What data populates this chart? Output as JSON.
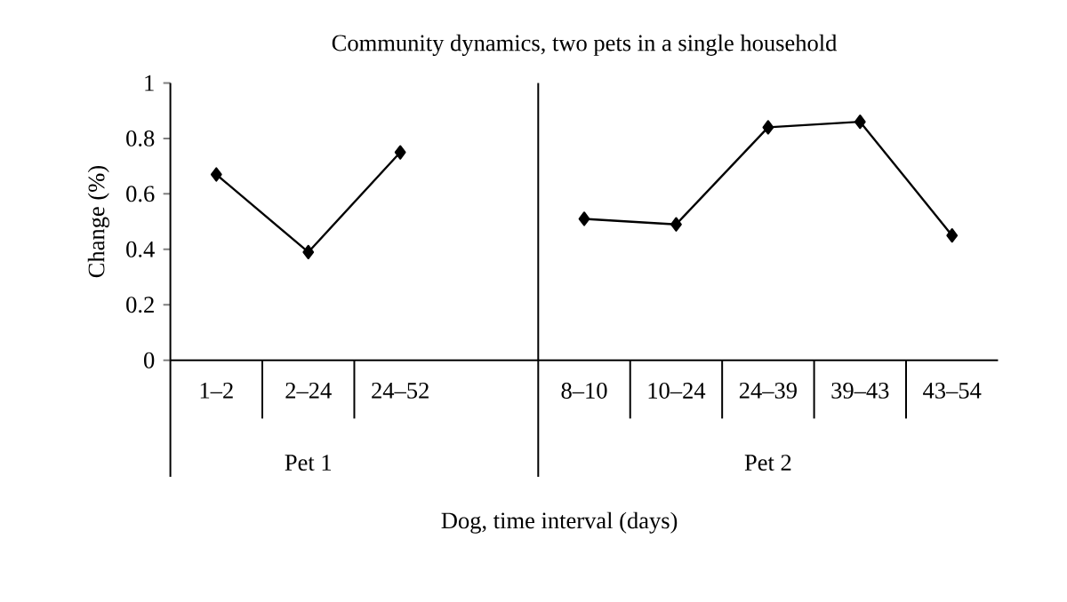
{
  "chart_data": {
    "type": "line",
    "title": "Community dynamics, two pets in a single household",
    "xlabel": "Dog, time interval (days)",
    "ylabel": "Change (%)",
    "categories": [
      "1–2",
      "2–24",
      "24–52",
      null,
      "8–10",
      "10–24",
      "24–39",
      "39–43",
      "43–54"
    ],
    "values": [
      0.67,
      0.39,
      0.75,
      null,
      0.51,
      0.49,
      0.84,
      0.86,
      0.45
    ],
    "color": "#000000",
    "marker": "diamond",
    "line_style": "solid",
    "grid": false,
    "ylim": [
      0,
      1
    ],
    "yticks": [
      0,
      0.2,
      0.4,
      0.6,
      0.8,
      1
    ],
    "annotations": [
      "Pet 1",
      "Pet 2"
    ]
  }
}
